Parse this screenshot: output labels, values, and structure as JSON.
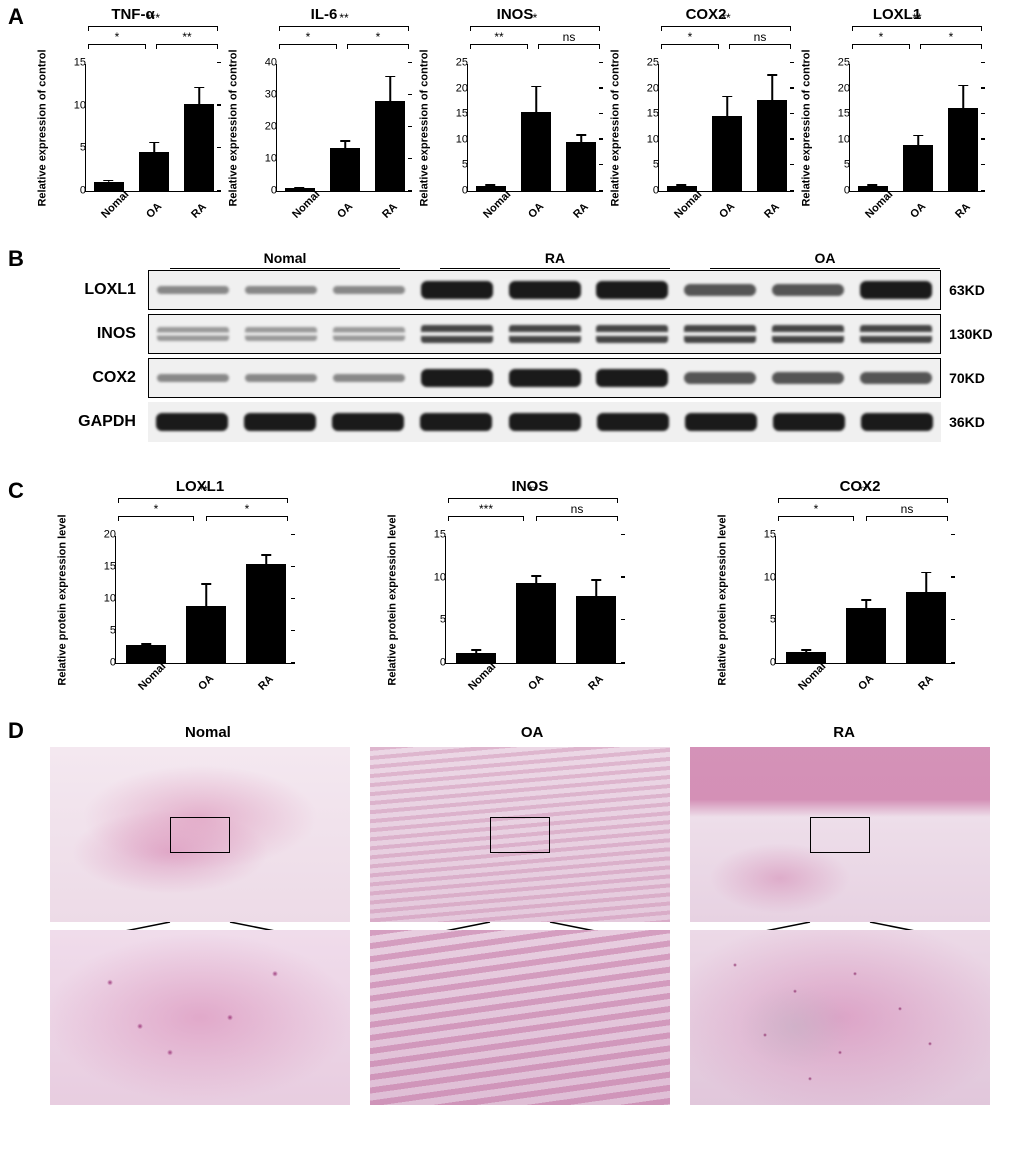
{
  "labels": {
    "A": "A",
    "B": "B",
    "C": "C",
    "D": "D"
  },
  "panelA": {
    "ylabel": "Relative expression of control",
    "categories": [
      "Nomal",
      "OA",
      "RA"
    ],
    "charts": [
      {
        "title": "TNF-α",
        "ymax": 15,
        "ytick": 5,
        "values": [
          1,
          4.6,
          10.2
        ],
        "err": [
          0.3,
          1.2,
          2.0
        ],
        "sig": {
          "top": "***",
          "left": "*",
          "right": "**"
        }
      },
      {
        "title": "IL-6",
        "ymax": 40,
        "ytick": 10,
        "values": [
          1,
          13.5,
          28.2
        ],
        "err": [
          0.4,
          2.3,
          7.8
        ],
        "sig": {
          "top": "**",
          "left": "*",
          "right": "*"
        }
      },
      {
        "title": "INOS",
        "ymax": 25,
        "ytick": 5,
        "values": [
          1,
          15.4,
          9.6
        ],
        "err": [
          0.3,
          5.2,
          1.5
        ],
        "sig": {
          "top": "*",
          "left": "**",
          "right": "ns"
        }
      },
      {
        "title": "COX2",
        "ymax": 25,
        "ytick": 5,
        "values": [
          1,
          14.6,
          17.8
        ],
        "err": [
          0.3,
          4.0,
          5.0
        ],
        "sig": {
          "top": "**",
          "left": "*",
          "right": "ns"
        }
      },
      {
        "title": "LOXL1",
        "ymax": 25,
        "ytick": 5,
        "values": [
          1,
          8.9,
          16.3
        ],
        "err": [
          0.3,
          2.1,
          4.5
        ],
        "sig": {
          "top": "**",
          "left": "*",
          "right": "*"
        }
      }
    ],
    "bar_color": "#000000"
  },
  "panelB": {
    "groups": [
      "Nomal",
      "RA",
      "OA"
    ],
    "rows": [
      {
        "label": "LOXL1",
        "kd": "63KD",
        "intensity": [
          "faint",
          "faint",
          "faint",
          "strong",
          "strong",
          "strong",
          "med",
          "med",
          "strong"
        ]
      },
      {
        "label": "INOS",
        "kd": "130KD",
        "intensity": [
          "double faint",
          "double faint",
          "double faint",
          "double",
          "double",
          "double",
          "double",
          "double",
          "double"
        ]
      },
      {
        "label": "COX2",
        "kd": "70KD",
        "intensity": [
          "faint",
          "faint",
          "faint",
          "strong",
          "strong",
          "strong",
          "med",
          "med",
          "med"
        ]
      },
      {
        "label": "GAPDH",
        "kd": "36KD",
        "intensity": [
          "strong",
          "strong",
          "strong",
          "strong",
          "strong",
          "strong",
          "strong",
          "strong",
          "strong"
        ]
      }
    ]
  },
  "panelC": {
    "ylabel": "Relative protein expression level",
    "categories": [
      "Nomal",
      "OA",
      "RA"
    ],
    "charts": [
      {
        "title": "LOXL1",
        "ymax": 20,
        "ytick": 5,
        "values": [
          2.8,
          8.9,
          15.4
        ],
        "err": [
          0.3,
          3.6,
          1.6
        ],
        "sig": {
          "top": "**",
          "left": "*",
          "right": "*"
        }
      },
      {
        "title": "INOS",
        "ymax": 15,
        "ytick": 5,
        "values": [
          1.2,
          9.4,
          7.9
        ],
        "err": [
          0.4,
          0.9,
          1.9
        ],
        "sig": {
          "top": "**",
          "left": "***",
          "right": "ns"
        }
      },
      {
        "title": "COX2",
        "ymax": 15,
        "ytick": 5,
        "values": [
          1.3,
          6.5,
          8.3
        ],
        "err": [
          0.3,
          1.0,
          2.4
        ],
        "sig": {
          "top": "**",
          "left": "*",
          "right": "ns"
        }
      }
    ],
    "bar_color": "#000000"
  },
  "panelD": {
    "groups": [
      "Nomal",
      "OA",
      "RA"
    ]
  },
  "colors": {
    "bar": "#000000",
    "axis": "#000000",
    "bg": "#ffffff"
  }
}
